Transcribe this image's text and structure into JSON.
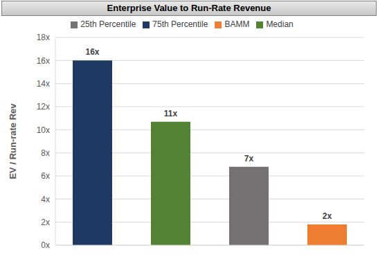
{
  "chart_data": {
    "type": "bar",
    "title": "Enterprise Value to Run-Rate Revenue",
    "y_label": "EV / Run-rate Rev",
    "categories": [
      null
    ],
    "series": [
      {
        "name": "75th Percentile",
        "color": "#1F3864",
        "values": [
          16
        ],
        "value_labels": [
          "16x"
        ]
      },
      {
        "name": "Median",
        "color": "#548235",
        "values": [
          10.7
        ],
        "value_labels": [
          "11x"
        ]
      },
      {
        "name": "25th Percentile",
        "color": "#767171",
        "values": [
          6.8
        ],
        "value_labels": [
          "7x"
        ]
      },
      {
        "name": "BAMM",
        "color": "#ED7D31",
        "values": [
          1.8
        ],
        "value_labels": [
          "2x"
        ]
      }
    ],
    "ylim": [
      0,
      18
    ],
    "yticks": [
      {
        "value": 0,
        "label": "0x"
      },
      {
        "value": 2,
        "label": "2x"
      },
      {
        "value": 4,
        "label": "4x"
      },
      {
        "value": 6,
        "label": "6x"
      },
      {
        "value": 8,
        "label": "8x"
      },
      {
        "value": 10,
        "label": "10x"
      },
      {
        "value": 12,
        "label": "12x"
      },
      {
        "value": 14,
        "label": "14x"
      },
      {
        "value": 16,
        "label": "16x"
      },
      {
        "value": 18,
        "label": "18x"
      }
    ],
    "grid": true,
    "legend": "top",
    "data_labels": true,
    "tick_labels": "y"
  }
}
